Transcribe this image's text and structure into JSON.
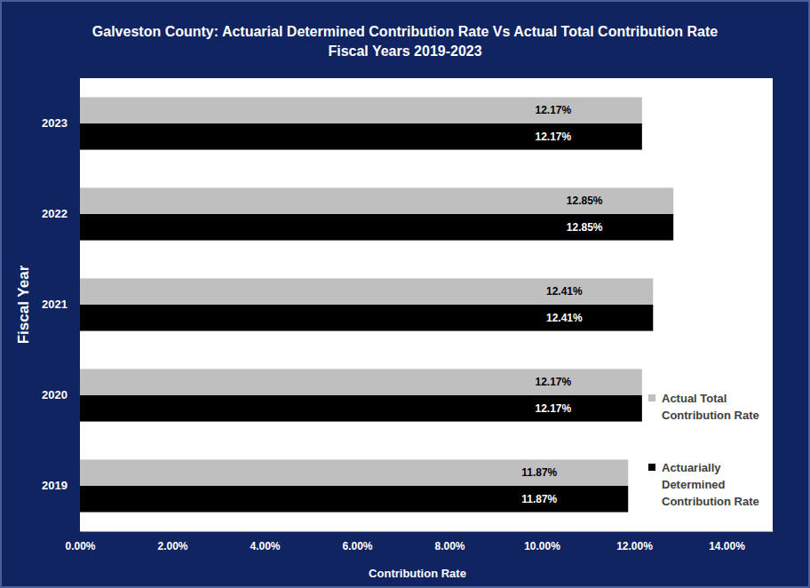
{
  "chart_data": {
    "type": "bar",
    "orientation": "horizontal",
    "title": "Galveston County: Actuarial Determined Contribution Rate Vs Actual Total Contribution Rate",
    "subtitle": "Fiscal Years 2019-2023",
    "x_label": "Contribution Rate",
    "y_label": "Fiscal Year",
    "categories": [
      "2019",
      "2020",
      "2021",
      "2022",
      "2023"
    ],
    "series": [
      {
        "name": "Actual Total Contribution Rate",
        "color": "#bfbfbf",
        "values": [
          11.87,
          12.17,
          12.41,
          12.85,
          12.17
        ],
        "value_labels": [
          "11.87%",
          "12.17%",
          "12.41%",
          "12.85%",
          "12.17%"
        ]
      },
      {
        "name": "Actuarially Determined Contribution Rate",
        "color": "#000000",
        "values": [
          11.87,
          12.17,
          12.41,
          12.85,
          12.17
        ],
        "value_labels": [
          "11.87%",
          "12.17%",
          "12.41%",
          "12.85%",
          "12.17%"
        ]
      }
    ],
    "xlim": [
      0,
      15
    ],
    "xticks": [
      {
        "value": 0,
        "label": "0.00%"
      },
      {
        "value": 2,
        "label": "2.00%"
      },
      {
        "value": 4,
        "label": "4.00%"
      },
      {
        "value": 6,
        "label": "6.00%"
      },
      {
        "value": 8,
        "label": "8.00%"
      },
      {
        "value": 10,
        "label": "10.00%"
      },
      {
        "value": 12,
        "label": "12.00%"
      },
      {
        "value": 14,
        "label": "14.00%"
      }
    ],
    "grid": false,
    "legend": "right",
    "data_labels": true
  }
}
